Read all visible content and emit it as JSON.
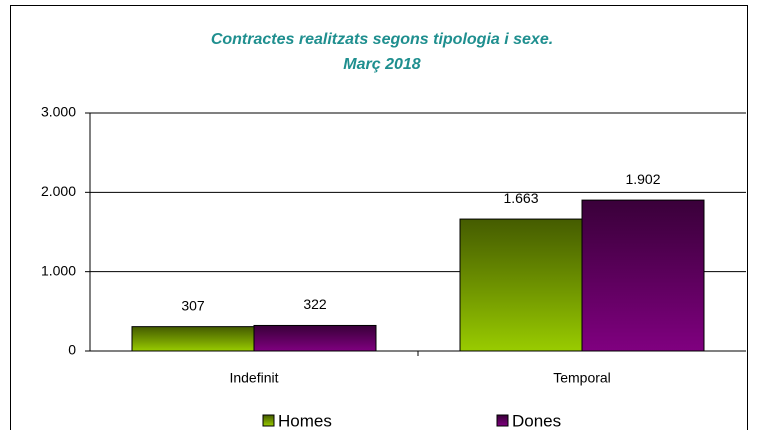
{
  "chart_data": {
    "type": "bar",
    "title": "Contractes realitzats segons tipologia i sexe.",
    "subtitle": "Març 2018",
    "categories": [
      "Indefinit",
      "Temporal"
    ],
    "series": [
      {
        "name": "Homes",
        "color": "#99cc00",
        "values": [
          307,
          1663
        ],
        "value_labels": [
          "307",
          "1.663"
        ]
      },
      {
        "name": "Dones",
        "color": "#800080",
        "values": [
          322,
          1902
        ],
        "value_labels": [
          "322",
          "1.902"
        ]
      }
    ],
    "ylim": [
      0,
      3000
    ],
    "yticks": [
      0,
      {
        "value": 1000,
        "label": "1.000"
      },
      {
        "value": 2000,
        "label": "2.000"
      },
      {
        "value": 3000,
        "label": "3.000"
      }
    ],
    "grid": true,
    "legend": "bottom"
  }
}
